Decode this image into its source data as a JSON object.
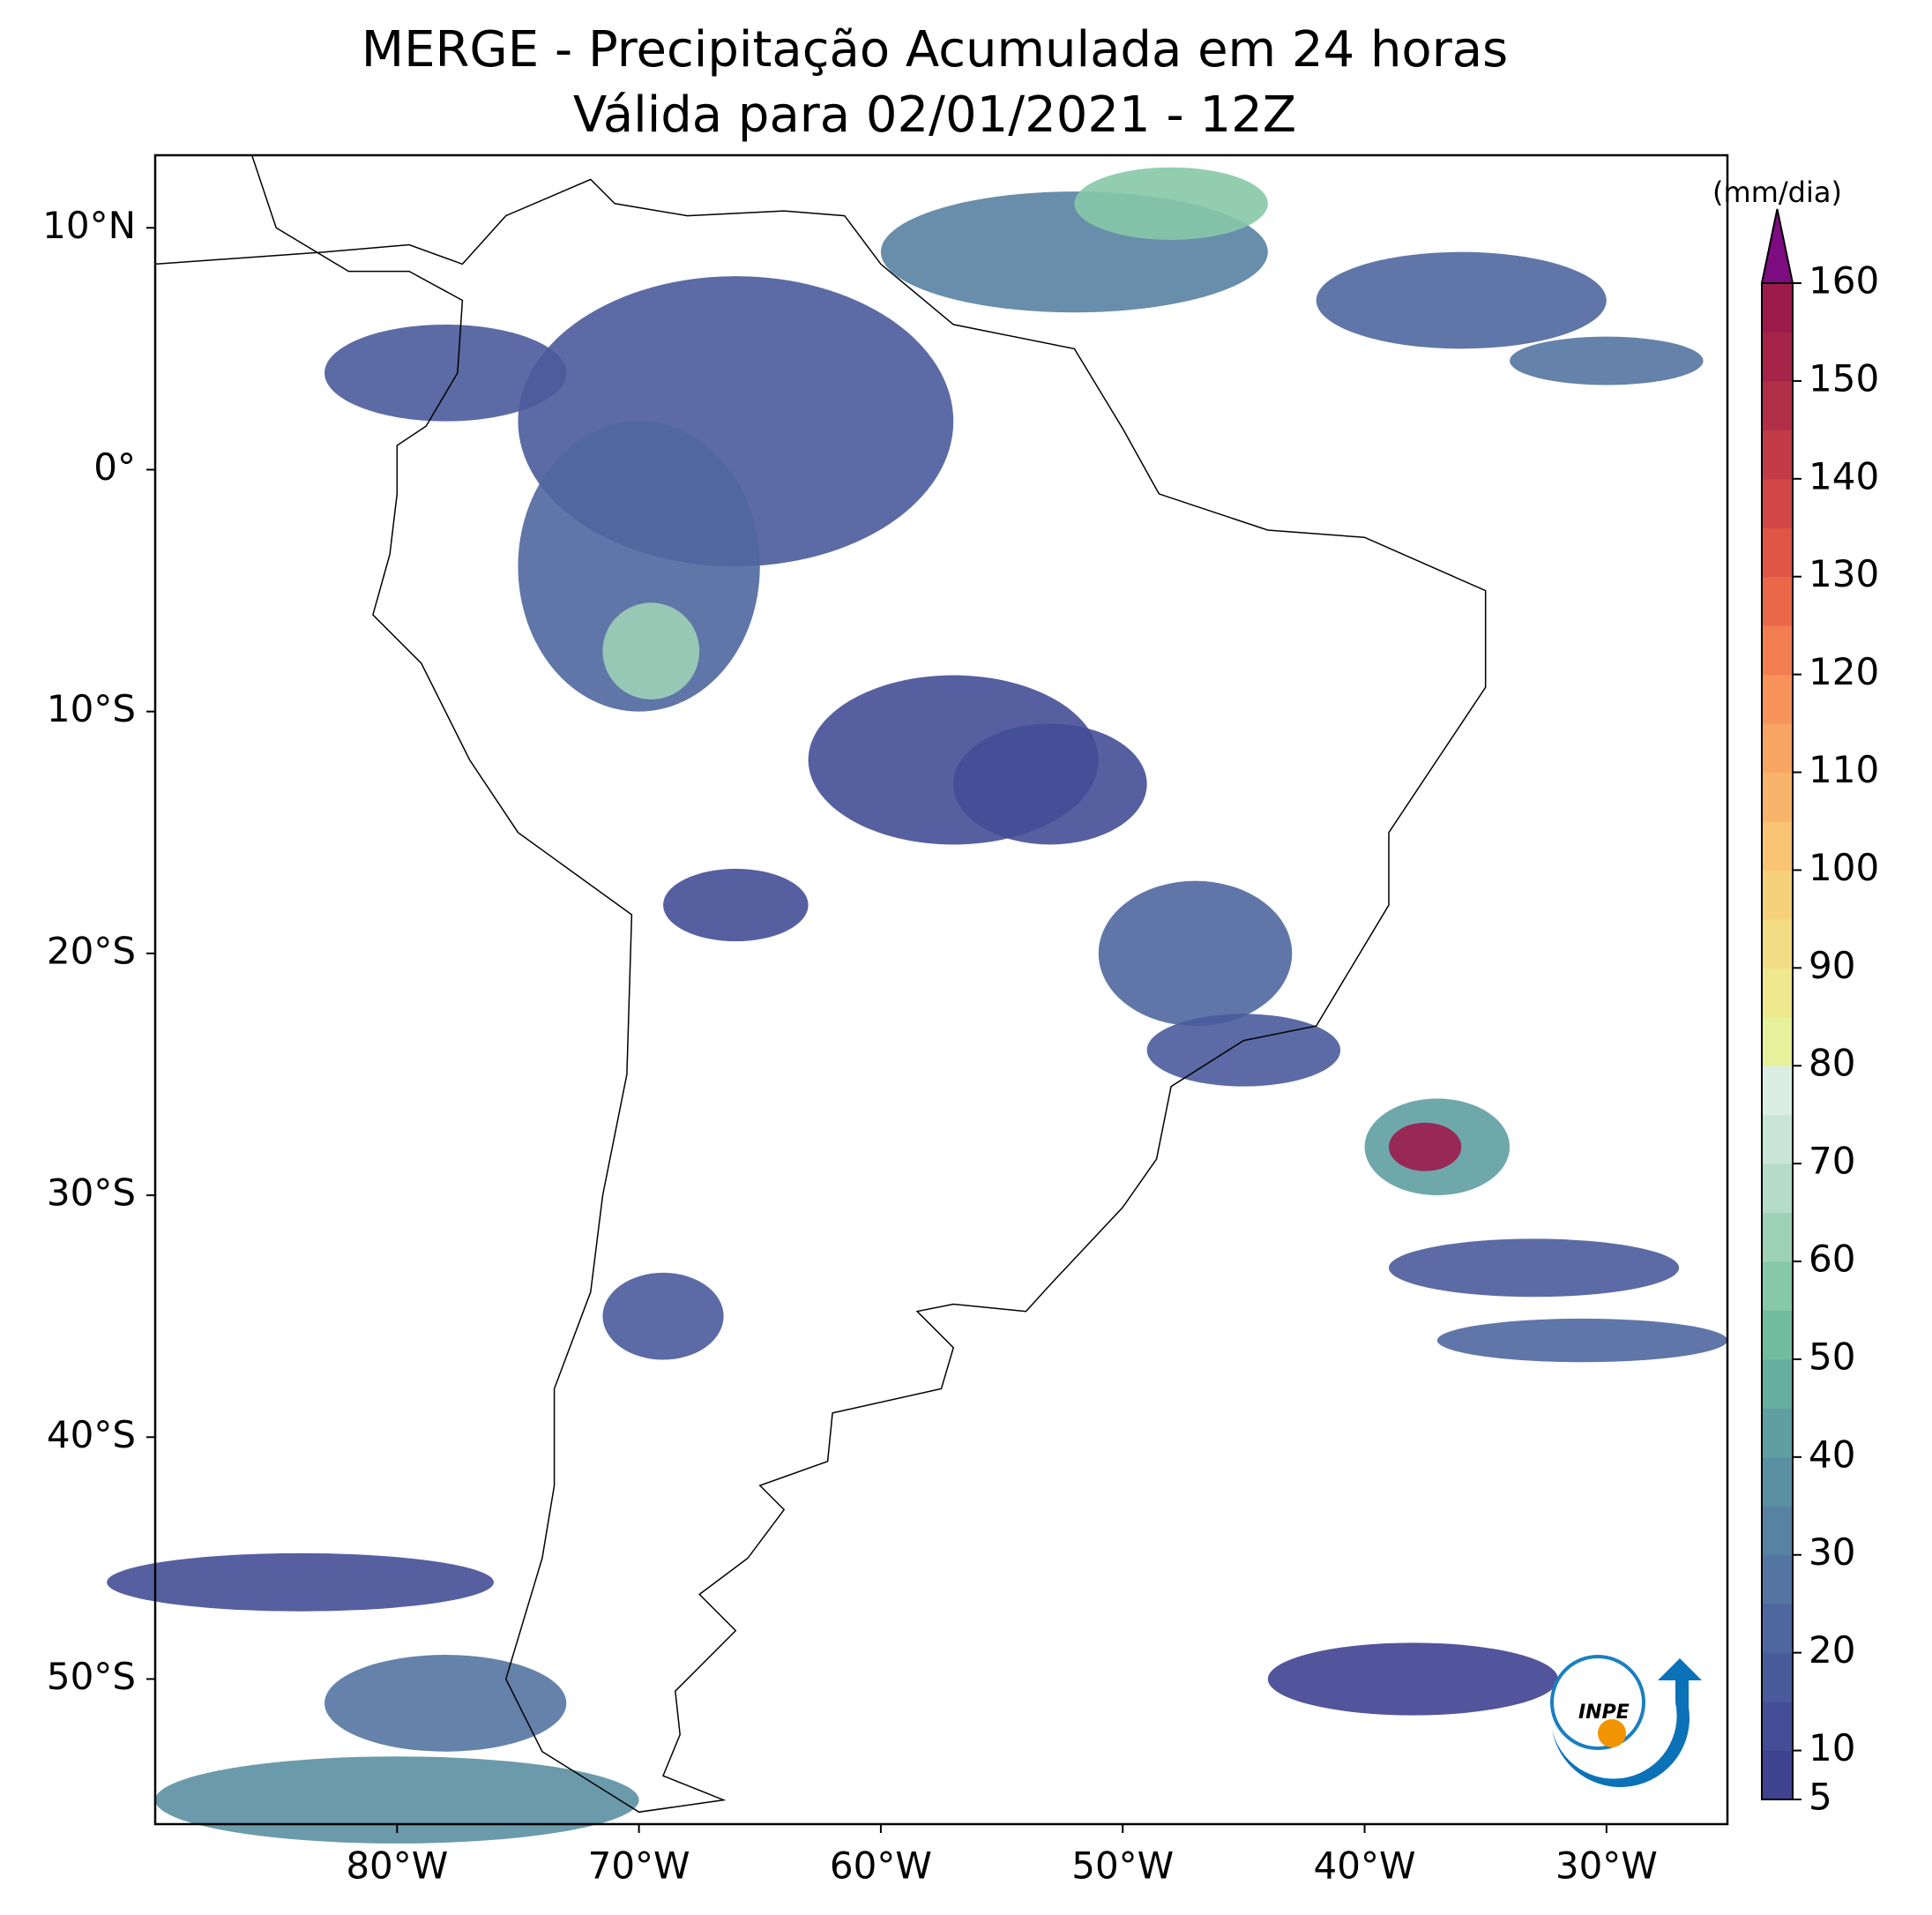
{
  "title": "MERGE - Precipitação Acumulada em 24 horas",
  "subtitle": "Válida para 02/01/2021 - 12Z",
  "map": {
    "xlim": [
      -90,
      -25
    ],
    "ylim": [
      -56,
      13
    ],
    "xticks": [
      {
        "value": -80,
        "label": "80°W"
      },
      {
        "value": -70,
        "label": "70°W"
      },
      {
        "value": -60,
        "label": "60°W"
      },
      {
        "value": -50,
        "label": "50°W"
      },
      {
        "value": -40,
        "label": "40°W"
      },
      {
        "value": -30,
        "label": "30°W"
      }
    ],
    "yticks": [
      {
        "value": 10,
        "label": "10°N"
      },
      {
        "value": 0,
        "label": "0°"
      },
      {
        "value": -10,
        "label": "10°S"
      },
      {
        "value": -20,
        "label": "20°S"
      },
      {
        "value": -30,
        "label": "30°S"
      },
      {
        "value": -40,
        "label": "40°S"
      },
      {
        "value": -50,
        "label": "50°S"
      }
    ]
  },
  "colorbar": {
    "label": "(mm/dia)",
    "lim": [
      5,
      160
    ],
    "ticks": [
      5,
      10,
      20,
      30,
      40,
      50,
      60,
      70,
      80,
      90,
      100,
      110,
      120,
      130,
      140,
      150,
      160
    ],
    "colors": [
      "#3f4390",
      "#444e96",
      "#4a5b9b",
      "#4f679f",
      "#5474a1",
      "#5882a2",
      "#5b90a2",
      "#5f9fa2",
      "#66aea0",
      "#71bc9f",
      "#86c8a7",
      "#9dd2b6",
      "#b4dcc7",
      "#c9e5d7",
      "#dbeee6",
      "#e7f09a",
      "#eee88f",
      "#f2dd84",
      "#f6d17b",
      "#f8c373",
      "#f9b46c",
      "#f8a463",
      "#f6925a",
      "#f27d51",
      "#ea6849",
      "#df5646",
      "#d14646",
      "#c23b47",
      "#b22f48",
      "#a52448",
      "#9c1b4a"
    ],
    "extend_color": "#7d0c80"
  },
  "logo": "INPE"
}
